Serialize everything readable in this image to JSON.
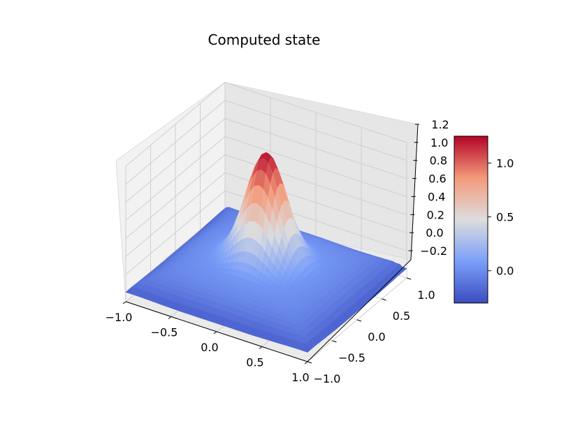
{
  "chart_data": {
    "type": "surface",
    "title": "Computed state",
    "x_range": [
      -1.0,
      1.0
    ],
    "y_range": [
      -1.0,
      1.0
    ],
    "zlim": [
      -0.3,
      1.2
    ],
    "x_ticks": [
      "−1.0",
      "−0.5",
      "0.0",
      "0.5",
      "1.0"
    ],
    "x_tick_values": [
      -1.0,
      -0.5,
      0.0,
      0.5,
      1.0
    ],
    "y_ticks": [
      "−1.0",
      "−0.5",
      "0.0",
      "0.5",
      "1.0"
    ],
    "y_tick_values": [
      -1.0,
      -0.5,
      0.0,
      0.5,
      1.0
    ],
    "z_ticks": [
      "−0.2",
      "0.0",
      "0.2",
      "0.4",
      "0.6",
      "0.8",
      "1.0",
      "1.2"
    ],
    "z_tick_values": [
      -0.2,
      0.0,
      0.2,
      0.4,
      0.6,
      0.8,
      1.0,
      1.2
    ],
    "peak": {
      "x": 0.0,
      "y": 0.0,
      "z": 1.18
    },
    "surface_min": -0.25,
    "grid": true,
    "colormap": "coolwarm",
    "colorbar": {
      "range": [
        -0.3,
        1.25
      ],
      "ticks": [
        "0.0",
        "0.5",
        "1.0"
      ],
      "tick_values": [
        0.0,
        0.5,
        1.0
      ],
      "placement": "right"
    },
    "colors": {
      "low": "#3b4cc0",
      "mid": "#dddddd",
      "high": "#b40426"
    }
  }
}
